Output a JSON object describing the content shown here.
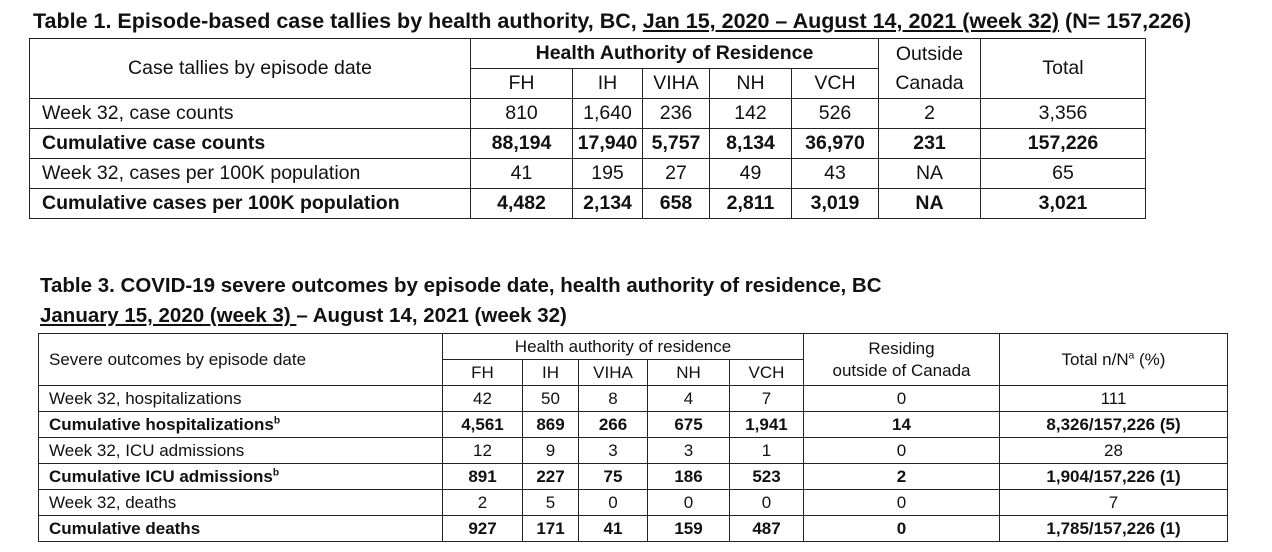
{
  "table1": {
    "title_prefix": "Table 1. Episode-based case tallies by health authority, BC, ",
    "title_range": "Jan 15, 2020 – August 14, 2021 (week 32)",
    "title_suffix": " (N= 157,226)",
    "row_header": "Case tallies by episode date",
    "group_header": "Health Authority of Residence",
    "outside_header_line1": "Outside",
    "outside_header_line2": "Canada",
    "total_header": "Total",
    "authorities": [
      "FH",
      "IH",
      "VIHA",
      "NH",
      "VCH"
    ],
    "rows": [
      {
        "label": "Week 32, case counts",
        "bold": false,
        "values": [
          "810",
          "1,640",
          "236",
          "142",
          "526",
          "2",
          "3,356"
        ]
      },
      {
        "label": "Cumulative case counts",
        "bold": true,
        "values": [
          "88,194",
          "17,940",
          "5,757",
          "8,134",
          "36,970",
          "231",
          "157,226"
        ]
      },
      {
        "label": "Week 32, cases per 100K population",
        "bold": false,
        "values": [
          "41",
          "195",
          "27",
          "49",
          "43",
          "NA",
          "65"
        ]
      },
      {
        "label": "Cumulative cases per 100K population",
        "bold": true,
        "values": [
          "4,482",
          "2,134",
          "658",
          "2,811",
          "3,019",
          "NA",
          "3,021"
        ]
      }
    ]
  },
  "table3": {
    "title_line1": "Table 3. COVID-19 severe outcomes by episode date, health authority of residence, BC",
    "title_line2_underlined": "January 15, 2020 (week 3) ",
    "title_line2_rest": "– August 14, 2021 (week 32)",
    "row_header": "Severe outcomes by episode date",
    "group_header": "Health authority of residence",
    "residing_header_line1": "Residing",
    "residing_header_line2": "outside of Canada",
    "total_header": "Total n/N",
    "total_header_sup": "a",
    "total_header_suffix": " (%)",
    "authorities": [
      "FH",
      "IH",
      "VIHA",
      "NH",
      "VCH"
    ],
    "rows": [
      {
        "label": "Week 32, hospitalizations",
        "sup": "",
        "bold": false,
        "values": [
          "42",
          "50",
          "8",
          "4",
          "7",
          "0",
          "111"
        ]
      },
      {
        "label": "Cumulative hospitalizations",
        "sup": "b",
        "bold": true,
        "values": [
          "4,561",
          "869",
          "266",
          "675",
          "1,941",
          "14",
          "8,326/157,226 (5)"
        ]
      },
      {
        "label": "Week 32, ICU admissions",
        "sup": "",
        "bold": false,
        "values": [
          "12",
          "9",
          "3",
          "3",
          "1",
          "0",
          "28"
        ]
      },
      {
        "label": "Cumulative ICU admissions",
        "sup": "b",
        "bold": true,
        "values": [
          "891",
          "227",
          "75",
          "186",
          "523",
          "2",
          "1,904/157,226 (1)"
        ]
      },
      {
        "label": "Week 32, deaths",
        "sup": "",
        "bold": false,
        "values": [
          "2",
          "5",
          "0",
          "0",
          "0",
          "0",
          "7"
        ]
      },
      {
        "label": "Cumulative deaths",
        "sup": "",
        "bold": true,
        "values": [
          "927",
          "171",
          "41",
          "159",
          "487",
          "0",
          "1,785/157,226 (1)"
        ]
      }
    ]
  }
}
